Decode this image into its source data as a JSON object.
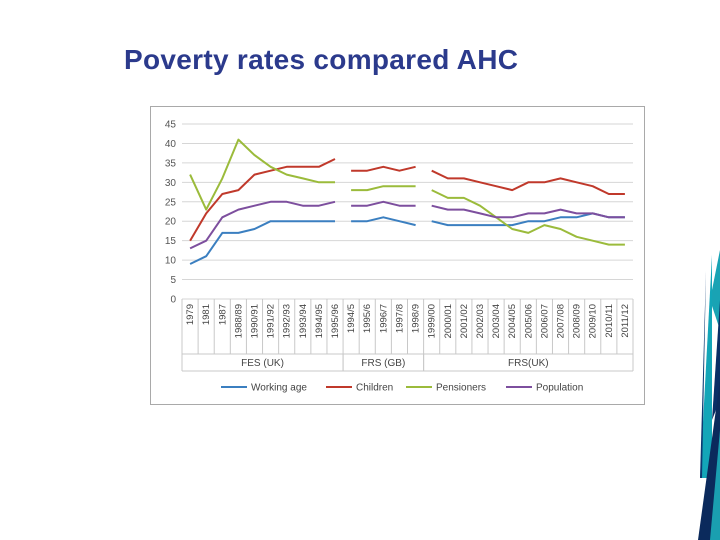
{
  "slide": {
    "title": "Poverty rates compared AHC"
  },
  "chart_data": {
    "type": "line",
    "title": "Poverty rates compared AHC",
    "ylim": [
      0,
      45
    ],
    "yticks": [
      0,
      5,
      10,
      15,
      20,
      25,
      30,
      35,
      40,
      45
    ],
    "grid": true,
    "categories": [
      "1979",
      "1981",
      "1987",
      "1988/89",
      "1990/91",
      "1991/92",
      "1992/93",
      "1993/94",
      "1994/95",
      "1995/96",
      "1994/5",
      "1995/6",
      "1996/7",
      "1997/8",
      "1998/9",
      "1999/00",
      "2000/01",
      "2001/02",
      "2002/03",
      "2003/04",
      "2004/05",
      "2005/06",
      "2006/07",
      "2007/08",
      "2008/09",
      "2009/10",
      "2010/11",
      "2011/12"
    ],
    "groups": [
      {
        "label": "FES (UK)",
        "start": 0,
        "end": 9
      },
      {
        "label": "FRS (GB)",
        "start": 10,
        "end": 14
      },
      {
        "label": "FRS(UK)",
        "start": 15,
        "end": 27
      }
    ],
    "series": [
      {
        "name": "Working age",
        "color": "#3b7fc0",
        "values": [
          9,
          11,
          17,
          17,
          18,
          20,
          20,
          20,
          20,
          20,
          20,
          20,
          21,
          20,
          19,
          20,
          19,
          19,
          19,
          19,
          19,
          20,
          20,
          21,
          21,
          22,
          21,
          21
        ]
      },
      {
        "name": "Children",
        "color": "#c0392b",
        "values": [
          15,
          22,
          27,
          28,
          32,
          33,
          34,
          34,
          34,
          36,
          33,
          33,
          34,
          33,
          34,
          33,
          31,
          31,
          30,
          29,
          28,
          30,
          30,
          31,
          30,
          29,
          27,
          27
        ]
      },
      {
        "name": "Pensioners",
        "color": "#9bbb3b",
        "values": [
          32,
          23,
          31,
          41,
          37,
          34,
          32,
          31,
          30,
          30,
          28,
          28,
          29,
          29,
          29,
          28,
          26,
          26,
          24,
          21,
          18,
          17,
          19,
          18,
          16,
          15,
          14,
          14
        ]
      },
      {
        "name": "Population",
        "color": "#7d4f9e",
        "values": [
          13,
          15,
          21,
          23,
          24,
          25,
          25,
          24,
          24,
          25,
          24,
          24,
          25,
          24,
          24,
          24,
          23,
          23,
          22,
          21,
          21,
          22,
          22,
          23,
          22,
          22,
          21,
          21
        ]
      }
    ]
  }
}
